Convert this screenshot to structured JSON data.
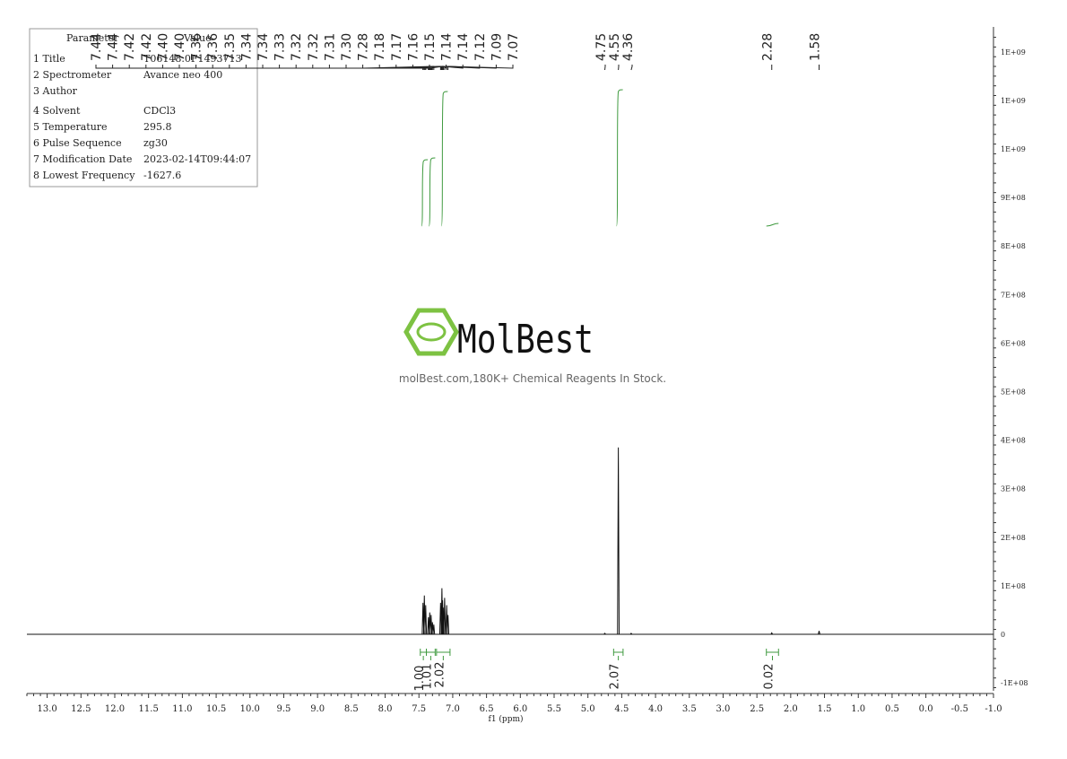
{
  "params": {
    "header_name": "Parameter",
    "header_value": "Value",
    "rows": [
      {
        "label": "1 Title",
        "value": "T06148.0F1493713"
      },
      {
        "label": "2 Spectrometer",
        "value": "Avance neo 400"
      },
      {
        "label": "3 Author",
        "value": ""
      },
      {
        "label": "4 Solvent",
        "value": "CDCl3"
      },
      {
        "label": "5 Temperature",
        "value": "295.8"
      },
      {
        "label": "6 Pulse Sequence",
        "value": "zg30"
      },
      {
        "label": "7 Modification Date",
        "value": "2023-02-14T09:44:07"
      },
      {
        "label": "8 Lowest Frequency",
        "value": "-1627.6"
      }
    ]
  },
  "watermark": {
    "brand": "MolBest",
    "tagline": "molBest.com,180K+ Chemical Reagents In Stock.",
    "color": "#7dc242"
  },
  "chart_data": {
    "type": "line",
    "xlabel": "f1 (ppm)",
    "xlim": [
      13.3,
      -1.0
    ],
    "ylim": [
      -120000000,
      1250000000
    ],
    "x_ticks": [
      "13.0",
      "12.5",
      "12.0",
      "11.5",
      "11.0",
      "10.5",
      "10.0",
      "9.5",
      "9.0",
      "8.5",
      "8.0",
      "7.5",
      "7.0",
      "6.5",
      "6.0",
      "5.5",
      "5.0",
      "4.5",
      "4.0",
      "3.5",
      "3.0",
      "2.5",
      "2.0",
      "1.5",
      "1.0",
      "0.5",
      "0.0",
      "-0.5",
      "-1.0"
    ],
    "y_ticks": [
      "1E+09",
      "1E+09",
      "1E+09",
      "9E+08",
      "8E+08",
      "7E+08",
      "6E+08",
      "5E+08",
      "4E+08",
      "3E+08",
      "2E+08",
      "1E+08",
      "0",
      "-1E+08"
    ],
    "y_tick_values": [
      1200000000,
      1100000000,
      1000000000,
      900000000,
      800000000,
      700000000,
      600000000,
      500000000,
      400000000,
      300000000,
      200000000,
      100000000,
      0,
      -100000000
    ],
    "peak_labels": {
      "group1": [
        "7.44",
        "7.44",
        "7.42",
        "7.42",
        "7.40",
        "7.40",
        "7.36",
        "7.36",
        "7.35",
        "7.34",
        "7.34",
        "7.33",
        "7.32",
        "7.32",
        "7.31",
        "7.30",
        "7.28",
        "7.18",
        "7.17",
        "7.16",
        "7.15",
        "7.14",
        "7.14",
        "7.12",
        "7.09",
        "7.07"
      ],
      "group2": [
        "4.75",
        "4.55",
        "4.36"
      ],
      "single": [
        "2.28",
        "1.58"
      ]
    },
    "peaks": [
      {
        "x": 7.44,
        "y": 65000000
      },
      {
        "x": 7.42,
        "y": 80000000
      },
      {
        "x": 7.4,
        "y": 60000000
      },
      {
        "x": 7.36,
        "y": 35000000
      },
      {
        "x": 7.34,
        "y": 45000000
      },
      {
        "x": 7.32,
        "y": 40000000
      },
      {
        "x": 7.3,
        "y": 25000000
      },
      {
        "x": 7.28,
        "y": 20000000
      },
      {
        "x": 7.18,
        "y": 65000000
      },
      {
        "x": 7.16,
        "y": 95000000
      },
      {
        "x": 7.15,
        "y": 70000000
      },
      {
        "x": 7.14,
        "y": 55000000
      },
      {
        "x": 7.12,
        "y": 75000000
      },
      {
        "x": 7.09,
        "y": 60000000
      },
      {
        "x": 7.07,
        "y": 40000000
      },
      {
        "x": 4.75,
        "y": 2000000
      },
      {
        "x": 4.55,
        "y": 385000000
      },
      {
        "x": 4.36,
        "y": 2000000
      },
      {
        "x": 2.28,
        "y": 3000000
      },
      {
        "x": 1.58,
        "y": 7000000
      }
    ],
    "integrations": [
      {
        "from": 7.48,
        "to": 7.39,
        "value": "1.00"
      },
      {
        "from": 7.39,
        "to": 7.26,
        "value": "1.01"
      },
      {
        "from": 7.24,
        "to": 7.04,
        "value": "2.02"
      },
      {
        "from": 4.62,
        "to": 4.48,
        "value": "2.07"
      },
      {
        "from": 2.36,
        "to": 2.18,
        "value": "0.02"
      }
    ],
    "integral_color": "#3f9a3f"
  }
}
